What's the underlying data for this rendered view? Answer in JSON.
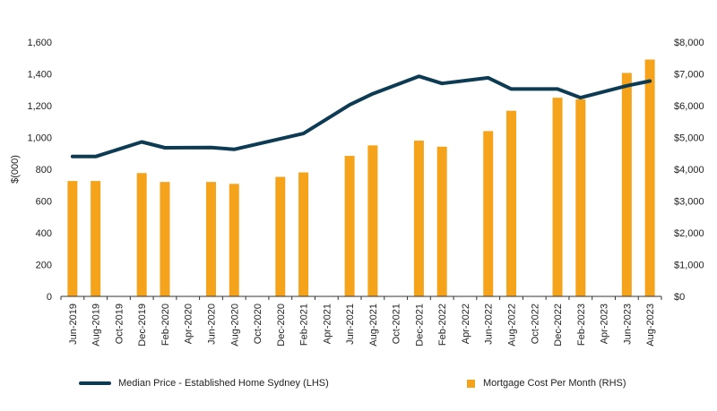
{
  "chart_data": {
    "type": "bar+line",
    "categories": [
      "Jun-2019",
      "Aug-2019",
      "Oct-2019",
      "Dec-2019",
      "Feb-2020",
      "Apr-2020",
      "Jun-2020",
      "Aug-2020",
      "Oct-2020",
      "Dec-2020",
      "Feb-2021",
      "Apr-2021",
      "Jun-2021",
      "Aug-2021",
      "Oct-2021",
      "Dec-2021",
      "Feb-2022",
      "Apr-2022",
      "Jun-2022",
      "Aug-2022",
      "Oct-2022",
      "Dec-2022",
      "Feb-2023",
      "Apr-2023",
      "Jun-2023",
      "Aug-2023"
    ],
    "ylabel_left": "$(000)",
    "yticks_left": [
      "0",
      "200",
      "400",
      "600",
      "800",
      "1,000",
      "1,200",
      "1,400",
      "1,600"
    ],
    "yticks_right": [
      "$0",
      "$1,000",
      "$2,000",
      "$3,000",
      "$4,000",
      "$5,000",
      "$6,000",
      "$7,000",
      "$8,000"
    ],
    "ylim_left": [
      0,
      1600
    ],
    "ylim_right": [
      0,
      8000
    ],
    "series": [
      {
        "name": "Median Price - Established Home Sydney (LHS)",
        "type": "line",
        "axis": "left",
        "color": "#0d3b54",
        "x": [
          "Jun-2019",
          "Aug-2019",
          "Dec-2019",
          "Feb-2020",
          "Jun-2020",
          "Aug-2020",
          "Feb-2021",
          "Jun-2021",
          "Aug-2021",
          "Dec-2021",
          "Feb-2022",
          "Jun-2022",
          "Aug-2022",
          "Dec-2022",
          "Feb-2023",
          "Jun-2023",
          "Aug-2023"
        ],
        "values": [
          880,
          880,
          972,
          935,
          937,
          925,
          1025,
          1205,
          1275,
          1385,
          1340,
          1375,
          1305,
          1305,
          1250,
          1325,
          1355
        ]
      },
      {
        "name": "Mortgage Cost Per Month (RHS)",
        "type": "bar",
        "axis": "right",
        "color": "#f5a31a",
        "x": [
          "Jun-2019",
          "Aug-2019",
          "Dec-2019",
          "Feb-2020",
          "Jun-2020",
          "Aug-2020",
          "Dec-2020",
          "Feb-2021",
          "Jun-2021",
          "Aug-2021",
          "Dec-2021",
          "Feb-2022",
          "Jun-2022",
          "Aug-2022",
          "Dec-2022",
          "Feb-2023",
          "Jun-2023",
          "Aug-2023"
        ],
        "values": [
          3630,
          3630,
          3880,
          3600,
          3600,
          3540,
          3760,
          3900,
          4420,
          4750,
          4900,
          4710,
          5200,
          5840,
          6250,
          6200,
          7030,
          7450
        ]
      }
    ],
    "legend": "bottom",
    "grid": false
  }
}
